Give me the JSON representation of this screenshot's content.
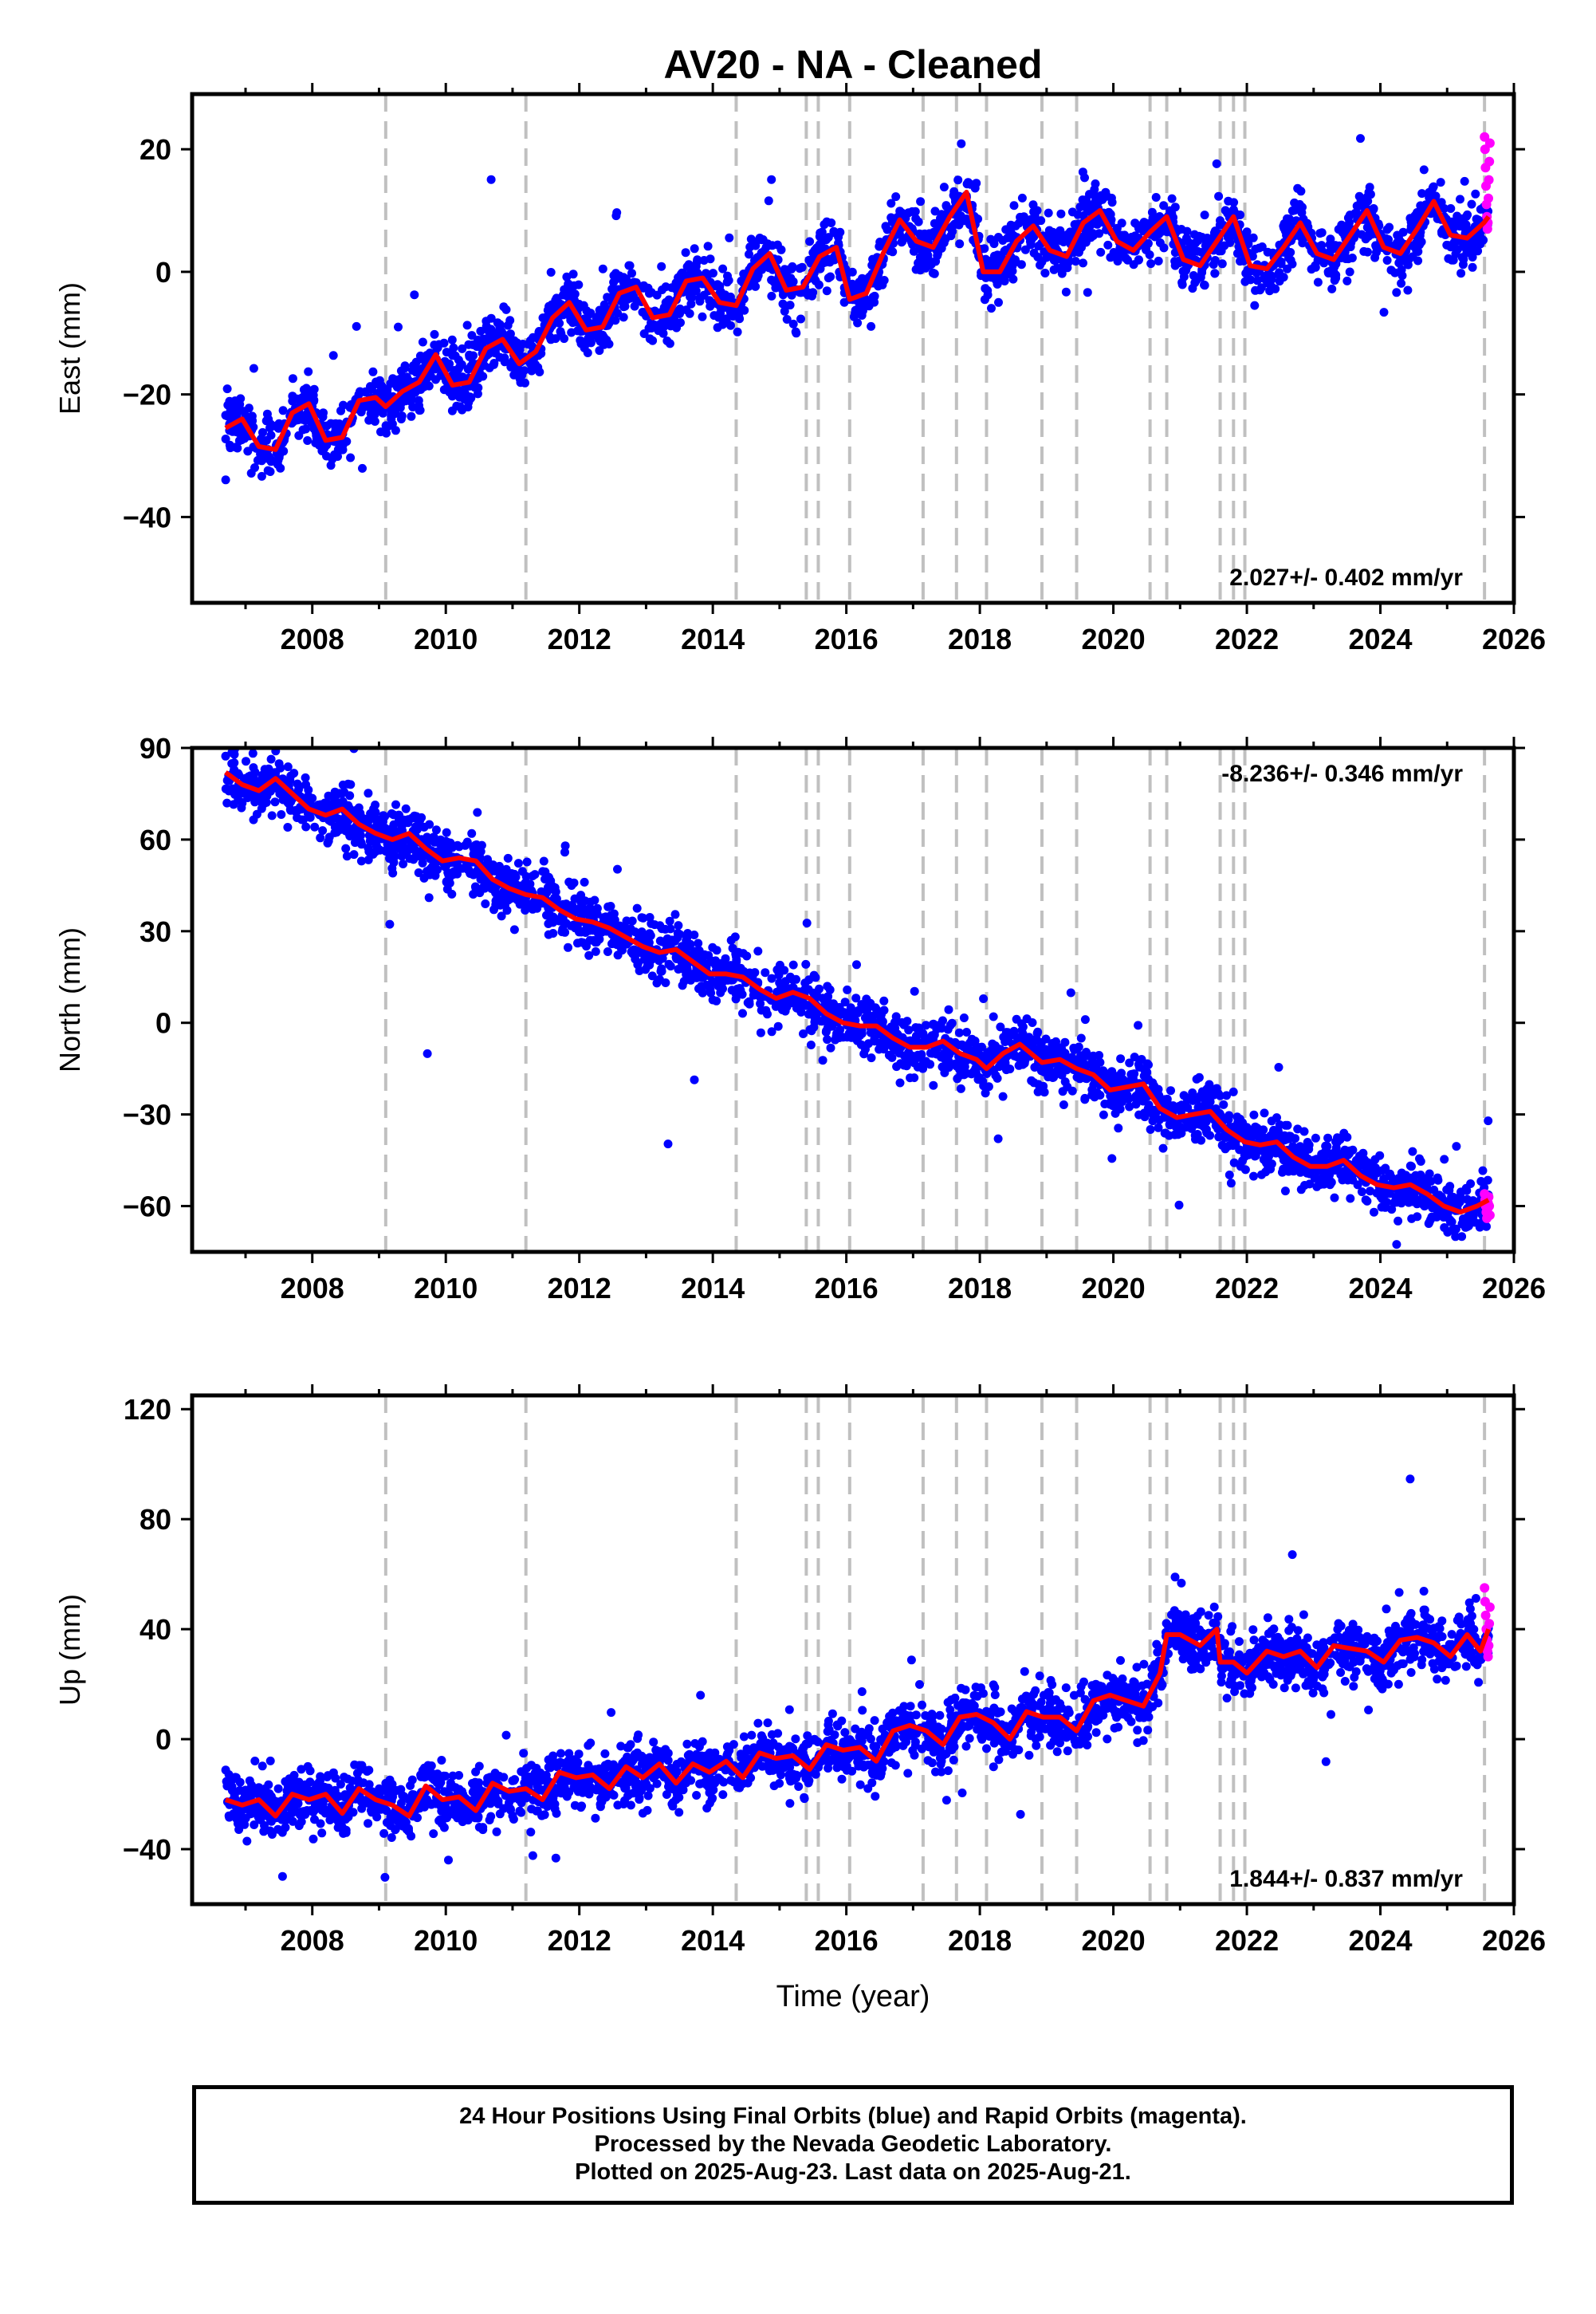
{
  "title": "AV20  - NA - Cleaned",
  "footer": {
    "line1": "24 Hour Positions Using Final Orbits (blue) and Rapid Orbits (magenta).",
    "line2": "Processed by the Nevada Geodetic Laboratory.",
    "line3": "Plotted on 2025-Aug-23. Last data on 2025-Aug-21."
  },
  "colors": {
    "final": "#0000ff",
    "rapid": "#ff00ff",
    "model": "#ff0000",
    "steps": "#c0c0c0"
  },
  "chart_data": [
    {
      "type": "scatter",
      "component": "East",
      "ylabel": "East (mm)",
      "xlabel": "",
      "xlim": [
        2006.2,
        2026.0
      ],
      "ylim": [
        -54,
        29
      ],
      "xticks": [
        2008,
        2010,
        2012,
        2014,
        2016,
        2018,
        2020,
        2022,
        2024,
        2026
      ],
      "yticks": [
        -40,
        -20,
        0,
        20
      ],
      "velocity_label": "2.027+/- 0.402 mm/yr",
      "velocity_position": "bottom-right",
      "step_epochs": [
        2009.1,
        2011.2,
        2014.35,
        2015.4,
        2015.58,
        2016.05,
        2017.15,
        2017.65,
        2018.1,
        2018.93,
        2019.45,
        2020.55,
        2020.8,
        2021.6,
        2021.8,
        2021.97,
        2025.56
      ],
      "model_x": [
        2006.7,
        2006.95,
        2007.2,
        2007.45,
        2007.7,
        2007.95,
        2008.2,
        2008.45,
        2008.7,
        2008.95,
        2009.1,
        2009.35,
        2009.6,
        2009.85,
        2010.1,
        2010.35,
        2010.6,
        2010.85,
        2011.1,
        2011.35,
        2011.6,
        2011.85,
        2012.1,
        2012.35,
        2012.6,
        2012.85,
        2013.1,
        2013.35,
        2013.6,
        2013.85,
        2014.1,
        2014.35,
        2014.6,
        2014.85,
        2015.1,
        2015.35,
        2015.6,
        2015.85,
        2016.05,
        2016.3,
        2016.55,
        2016.8,
        2017.05,
        2017.3,
        2017.55,
        2017.8,
        2018.05,
        2018.3,
        2018.55,
        2018.8,
        2019.05,
        2019.3,
        2019.55,
        2019.8,
        2020.05,
        2020.3,
        2020.55,
        2020.8,
        2021.05,
        2021.3,
        2021.55,
        2021.8,
        2022.05,
        2022.3,
        2022.55,
        2022.8,
        2023.05,
        2023.3,
        2023.55,
        2023.8,
        2024.05,
        2024.3,
        2024.55,
        2024.8,
        2025.05,
        2025.3,
        2025.55,
        2025.62
      ],
      "model_y": [
        -25.5,
        -24,
        -28.5,
        -29,
        -23,
        -21.5,
        -27.5,
        -27,
        -21,
        -20.5,
        -22,
        -19.5,
        -18,
        -13.5,
        -18.5,
        -18,
        -12.5,
        -11,
        -15,
        -13,
        -7.5,
        -5,
        -9.5,
        -9,
        -3.5,
        -2.5,
        -7.5,
        -7,
        -1.5,
        -1,
        -5,
        -5.5,
        0.5,
        3,
        -3,
        -2.5,
        2.5,
        4,
        -4.5,
        -3.5,
        3,
        8.5,
        5,
        4,
        9,
        13,
        0,
        0,
        5,
        7.5,
        3.5,
        2.5,
        8,
        10,
        5,
        3.5,
        6.5,
        9,
        2,
        1,
        5,
        9,
        1,
        0.5,
        4,
        8,
        3,
        2,
        6,
        10,
        4,
        3,
        7,
        11.5,
        6,
        5.5,
        8,
        9
      ],
      "final_trend": [
        -26,
        12
      ],
      "rapid_range": [
        2025.56,
        2025.64
      ],
      "rapid_y": [
        22,
        20,
        17,
        14,
        11,
        9,
        7,
        8,
        12,
        15,
        18,
        21
      ]
    },
    {
      "type": "scatter",
      "component": "North",
      "ylabel": "North (mm)",
      "xlabel": "",
      "xlim": [
        2006.2,
        2026.0
      ],
      "ylim": [
        -75,
        90
      ],
      "xticks": [
        2008,
        2010,
        2012,
        2014,
        2016,
        2018,
        2020,
        2022,
        2024,
        2026
      ],
      "yticks": [
        -60,
        -30,
        0,
        30,
        60,
        90
      ],
      "velocity_label": "-8.236+/- 0.346 mm/yr",
      "velocity_position": "top-right",
      "step_epochs": [
        2009.1,
        2011.2,
        2014.35,
        2015.4,
        2015.58,
        2016.05,
        2017.15,
        2017.65,
        2018.1,
        2018.93,
        2019.45,
        2020.55,
        2020.8,
        2021.6,
        2021.8,
        2021.97,
        2025.56
      ],
      "model_x": [
        2006.7,
        2006.95,
        2007.2,
        2007.45,
        2007.7,
        2007.95,
        2008.2,
        2008.45,
        2008.7,
        2008.95,
        2009.2,
        2009.45,
        2009.7,
        2009.95,
        2010.2,
        2010.45,
        2010.7,
        2010.95,
        2011.2,
        2011.45,
        2011.7,
        2011.95,
        2012.2,
        2012.45,
        2012.7,
        2012.95,
        2013.2,
        2013.45,
        2013.7,
        2013.95,
        2014.2,
        2014.45,
        2014.7,
        2014.95,
        2015.2,
        2015.45,
        2015.7,
        2015.95,
        2016.2,
        2016.45,
        2016.7,
        2016.95,
        2017.2,
        2017.45,
        2017.7,
        2017.95,
        2018.1,
        2018.35,
        2018.6,
        2018.93,
        2019.2,
        2019.45,
        2019.7,
        2019.95,
        2020.2,
        2020.45,
        2020.7,
        2020.95,
        2021.2,
        2021.45,
        2021.7,
        2021.97,
        2022.2,
        2022.45,
        2022.7,
        2022.95,
        2023.2,
        2023.45,
        2023.7,
        2023.95,
        2024.2,
        2024.45,
        2024.7,
        2024.95,
        2025.2,
        2025.45,
        2025.62
      ],
      "model_y": [
        82,
        78,
        76,
        80,
        75,
        70,
        68,
        70,
        65,
        62,
        60,
        62,
        57,
        53,
        54,
        53,
        47,
        44,
        42,
        41,
        37,
        34,
        33,
        31,
        28,
        25,
        23,
        24,
        20,
        16,
        16,
        15,
        11,
        8,
        10,
        8,
        3,
        0,
        -1,
        -1,
        -5,
        -8,
        -8,
        -6,
        -10,
        -12,
        -15,
        -10,
        -7,
        -13,
        -12,
        -15,
        -17,
        -22,
        -21,
        -20,
        -28,
        -31,
        -30,
        -29,
        -35,
        -39,
        -40,
        -39,
        -44,
        -47,
        -47,
        -45,
        -50,
        -53,
        -54,
        -53,
        -56,
        -60,
        -62,
        -60,
        -58
      ],
      "rapid_range": [
        2025.56,
        2025.64
      ],
      "rapid_y": [
        -56,
        -58,
        -60,
        -62,
        -64,
        -61,
        -59,
        -57,
        -60,
        -63
      ]
    },
    {
      "type": "scatter",
      "component": "Up",
      "ylabel": "Up (mm)",
      "xlabel": "Time (year)",
      "xlim": [
        2006.2,
        2026.0
      ],
      "ylim": [
        -60,
        125
      ],
      "xticks": [
        2008,
        2010,
        2012,
        2014,
        2016,
        2018,
        2020,
        2022,
        2024,
        2026
      ],
      "yticks": [
        -40,
        0,
        40,
        80,
        120
      ],
      "velocity_label": "1.844+/- 0.837 mm/yr",
      "velocity_position": "bottom-right",
      "step_epochs": [
        2009.1,
        2011.2,
        2014.35,
        2015.4,
        2015.58,
        2016.05,
        2017.15,
        2017.65,
        2018.1,
        2018.93,
        2019.45,
        2020.55,
        2020.8,
        2021.6,
        2021.8,
        2021.97,
        2025.56
      ],
      "model_x": [
        2006.7,
        2006.95,
        2007.2,
        2007.45,
        2007.7,
        2007.95,
        2008.2,
        2008.45,
        2008.7,
        2008.95,
        2009.2,
        2009.45,
        2009.7,
        2009.95,
        2010.2,
        2010.45,
        2010.7,
        2010.95,
        2011.2,
        2011.45,
        2011.7,
        2011.95,
        2012.2,
        2012.45,
        2012.7,
        2012.95,
        2013.2,
        2013.45,
        2013.7,
        2013.95,
        2014.2,
        2014.45,
        2014.7,
        2014.95,
        2015.2,
        2015.45,
        2015.7,
        2015.95,
        2016.2,
        2016.45,
        2016.7,
        2016.95,
        2017.2,
        2017.45,
        2017.7,
        2017.95,
        2018.2,
        2018.45,
        2018.7,
        2018.95,
        2019.2,
        2019.45,
        2019.7,
        2019.95,
        2020.2,
        2020.45,
        2020.7,
        2020.8,
        2021.0,
        2021.3,
        2021.55,
        2021.6,
        2021.8,
        2022.0,
        2022.3,
        2022.55,
        2022.8,
        2023.05,
        2023.3,
        2023.55,
        2023.8,
        2024.05,
        2024.3,
        2024.55,
        2024.8,
        2025.05,
        2025.3,
        2025.5,
        2025.62
      ],
      "model_y": [
        -22,
        -24,
        -22,
        -28,
        -20,
        -22,
        -20,
        -27,
        -18,
        -22,
        -24,
        -28,
        -17,
        -22,
        -21,
        -26,
        -16,
        -19,
        -18,
        -22,
        -12,
        -14,
        -13,
        -18,
        -10,
        -14,
        -9,
        -16,
        -9,
        -12,
        -8,
        -14,
        -5,
        -7,
        -6,
        -11,
        -2,
        -4,
        -3,
        -8,
        3,
        5,
        3,
        -2,
        8,
        9,
        6,
        0,
        10,
        8,
        8,
        3,
        14,
        16,
        14,
        12,
        24,
        38,
        38,
        34,
        40,
        28,
        28,
        24,
        32,
        30,
        32,
        26,
        34,
        33,
        32,
        28,
        36,
        37,
        35,
        30,
        38,
        32,
        40
      ],
      "rapid_range": [
        2025.56,
        2025.64
      ],
      "rapid_y": [
        55,
        50,
        45,
        40,
        36,
        32,
        30,
        34,
        42,
        48
      ]
    }
  ]
}
